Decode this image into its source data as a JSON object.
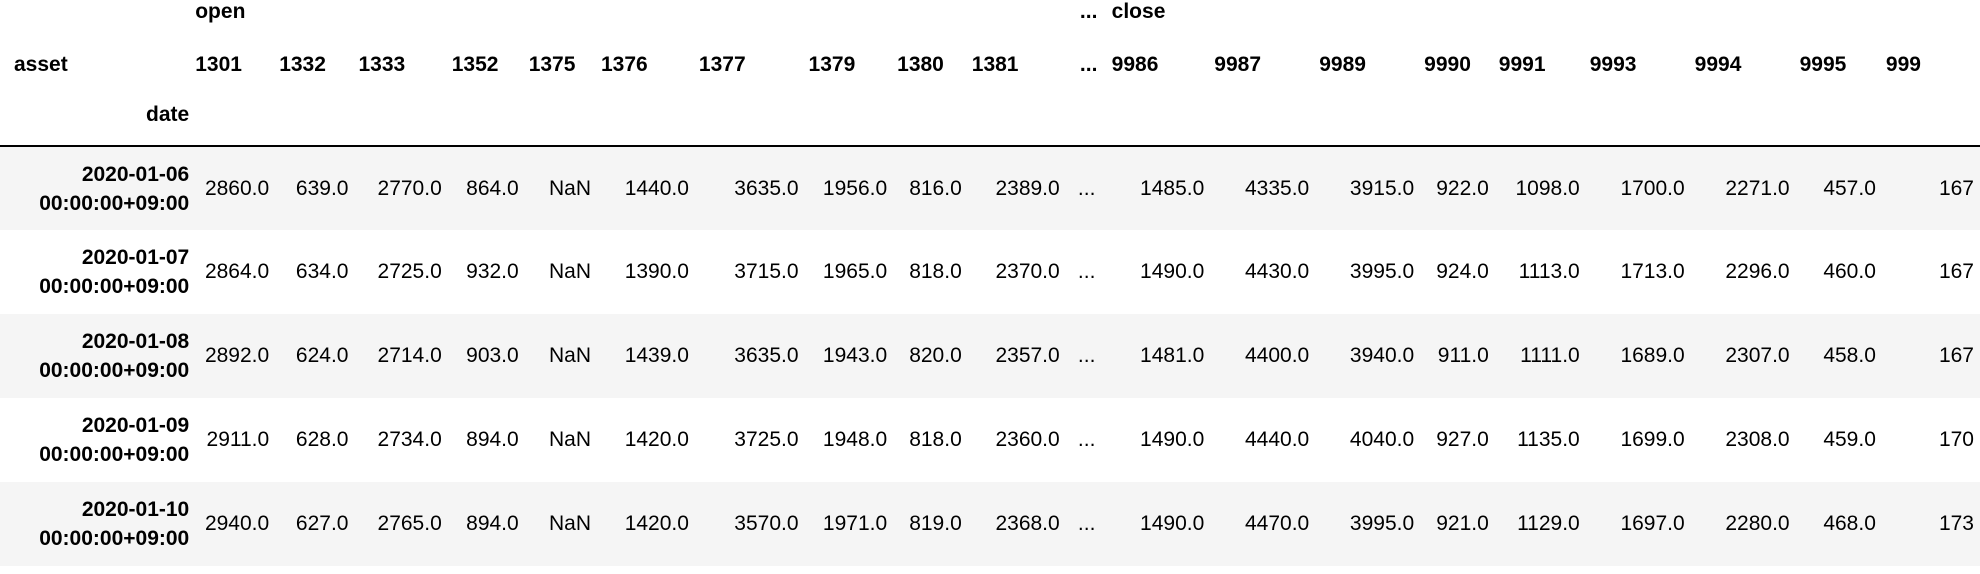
{
  "table": {
    "top_headers": [
      {
        "label": "open",
        "col": 1
      },
      {
        "label": "...",
        "col": 11
      },
      {
        "label": "close",
        "col": 12
      }
    ],
    "asset_label": "asset",
    "date_label": "date",
    "asset_columns": [
      "1301",
      "1332",
      "1333",
      "1352",
      "1375",
      "1376",
      "1377",
      "1379",
      "1380",
      "1381",
      "...",
      "9986",
      "9987",
      "9989",
      "9990",
      "9991",
      "9993",
      "9994",
      "9995",
      "999"
    ],
    "rows": [
      {
        "date_line1": "2020-01-06",
        "date_line2": "00:00:00+09:00",
        "values": [
          "2860.0",
          "639.0",
          "2770.0",
          "864.0",
          "NaN",
          "1440.0",
          "3635.0",
          "1956.0",
          "816.0",
          "2389.0",
          "...",
          "1485.0",
          "4335.0",
          "3915.0",
          "922.0",
          "1098.0",
          "1700.0",
          "2271.0",
          "457.0",
          "167"
        ]
      },
      {
        "date_line1": "2020-01-07",
        "date_line2": "00:00:00+09:00",
        "values": [
          "2864.0",
          "634.0",
          "2725.0",
          "932.0",
          "NaN",
          "1390.0",
          "3715.0",
          "1965.0",
          "818.0",
          "2370.0",
          "...",
          "1490.0",
          "4430.0",
          "3995.0",
          "924.0",
          "1113.0",
          "1713.0",
          "2296.0",
          "460.0",
          "167"
        ]
      },
      {
        "date_line1": "2020-01-08",
        "date_line2": "00:00:00+09:00",
        "values": [
          "2892.0",
          "624.0",
          "2714.0",
          "903.0",
          "NaN",
          "1439.0",
          "3635.0",
          "1943.0",
          "820.0",
          "2357.0",
          "...",
          "1481.0",
          "4400.0",
          "3940.0",
          "911.0",
          "1111.0",
          "1689.0",
          "2307.0",
          "458.0",
          "167"
        ]
      },
      {
        "date_line1": "2020-01-09",
        "date_line2": "00:00:00+09:00",
        "values": [
          "2911.0",
          "628.0",
          "2734.0",
          "894.0",
          "NaN",
          "1420.0",
          "3725.0",
          "1948.0",
          "818.0",
          "2360.0",
          "...",
          "1490.0",
          "4440.0",
          "4040.0",
          "927.0",
          "1135.0",
          "1699.0",
          "2308.0",
          "459.0",
          "170"
        ]
      },
      {
        "date_line1": "2020-01-10",
        "date_line2": "00:00:00+09:00",
        "values": [
          "2940.0",
          "627.0",
          "2765.0",
          "894.0",
          "NaN",
          "1420.0",
          "3570.0",
          "1971.0",
          "819.0",
          "2368.0",
          "...",
          "1490.0",
          "4470.0",
          "3995.0",
          "921.0",
          "1129.0",
          "1697.0",
          "2280.0",
          "468.0",
          "173"
        ]
      }
    ]
  },
  "colors": {
    "row_stripe": "#f5f5f5",
    "background": "#ffffff",
    "text": "#000000"
  }
}
